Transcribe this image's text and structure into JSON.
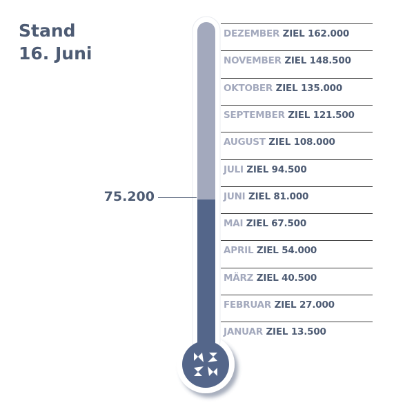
{
  "header": {
    "line1": "Stand",
    "line2": "16. Juni"
  },
  "current_value": "75.200",
  "progress": {
    "value": 75200,
    "max": 162000
  },
  "goal_word": "ZIEL",
  "months": [
    {
      "month": "DEZEMBER",
      "target": "162.000"
    },
    {
      "month": "NOVEMBER",
      "target": "148.500"
    },
    {
      "month": "OKTOBER",
      "target": "135.000"
    },
    {
      "month": "SEPTEMBER",
      "target": "121.500"
    },
    {
      "month": "AUGUST",
      "target": "108.000"
    },
    {
      "month": "JULI",
      "target": "94.500"
    },
    {
      "month": "JUNI",
      "target": "81.000"
    },
    {
      "month": "MAI",
      "target": "67.500"
    },
    {
      "month": "APRIL",
      "target": "54.000"
    },
    {
      "month": "MÄRZ",
      "target": "40.500"
    },
    {
      "month": "FEBRUAR",
      "target": "27.000"
    },
    {
      "month": "JANUAR",
      "target": "13.500"
    }
  ],
  "colors": {
    "fill": "#54668a",
    "empty": "#a3a9bd",
    "text_dark": "#4d5b73",
    "text_light": "#a3a9bd"
  },
  "icons": {
    "bulb": "four-arrows-icon"
  }
}
